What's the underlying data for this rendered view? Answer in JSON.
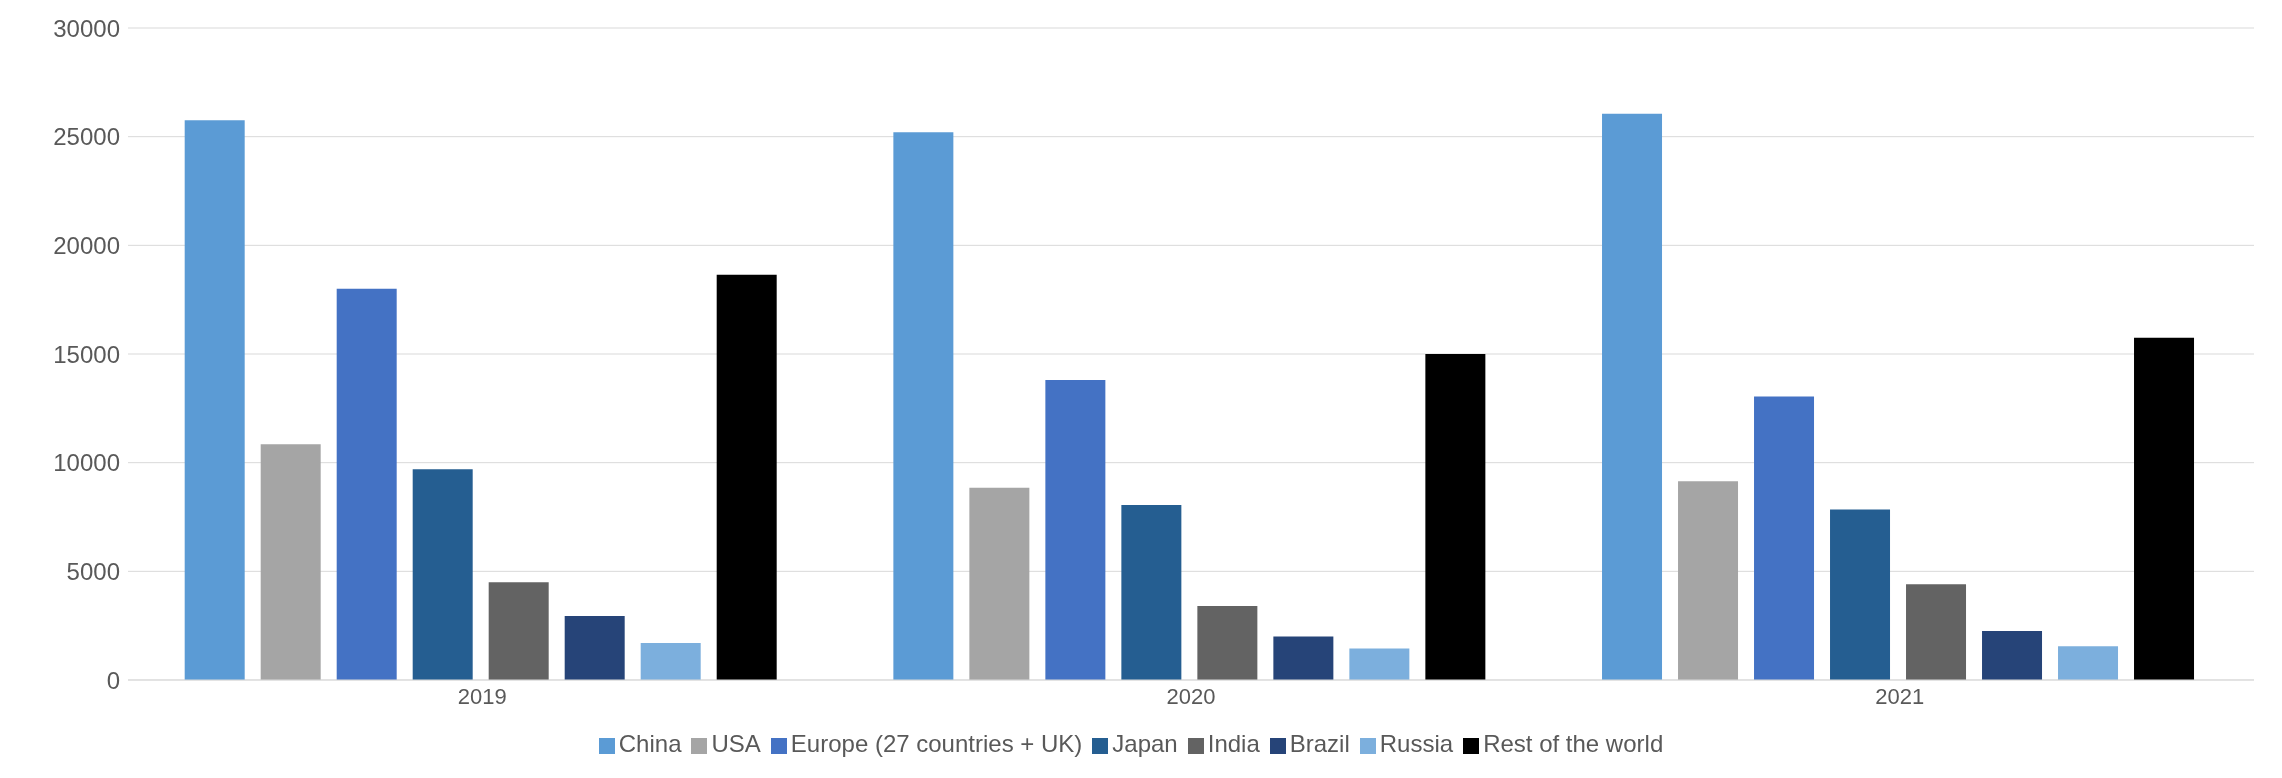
{
  "chart_data": {
    "type": "bar",
    "categories": [
      "2019",
      "2020",
      "2021"
    ],
    "series": [
      {
        "name": "China",
        "color": "#5b9bd5",
        "values": [
          25750,
          25200,
          26050
        ]
      },
      {
        "name": "USA",
        "color": "#a5a5a5",
        "values": [
          10850,
          8850,
          9150
        ]
      },
      {
        "name": "Europe (27 countries + UK)",
        "color": "#4472c4",
        "values": [
          18000,
          13800,
          13050
        ]
      },
      {
        "name": "Japan",
        "color": "#255e91",
        "values": [
          9700,
          8050,
          7850
        ]
      },
      {
        "name": "India",
        "color": "#636363",
        "values": [
          4500,
          3400,
          4400
        ]
      },
      {
        "name": "Brazil",
        "color": "#264478",
        "values": [
          2950,
          2000,
          2250
        ]
      },
      {
        "name": "Russia",
        "color": "#7cafdd",
        "values": [
          1700,
          1450,
          1550
        ]
      },
      {
        "name": "Rest of the world",
        "color": "#000000",
        "values": [
          18650,
          15000,
          15750
        ]
      }
    ],
    "ylim": [
      0,
      30000
    ],
    "yticks": [
      0,
      5000,
      10000,
      15000,
      20000,
      25000,
      30000
    ],
    "grid": "y",
    "legend": "bottom"
  }
}
